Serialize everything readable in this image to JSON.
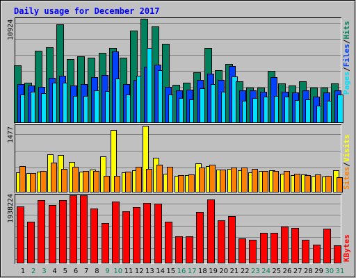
{
  "chart_data": {
    "type": "bar",
    "title": "Daily usage for December 2017",
    "categories": [
      "1",
      "2",
      "3",
      "4",
      "5",
      "6",
      "7",
      "8",
      "9",
      "10",
      "11",
      "12",
      "13",
      "14",
      "15",
      "16",
      "17",
      "18",
      "19",
      "20",
      "21",
      "22",
      "23",
      "24",
      "25",
      "26",
      "27",
      "28",
      "29",
      "30",
      "31"
    ],
    "weekend_days": [
      "2",
      "3",
      "9",
      "10",
      "16",
      "17",
      "23",
      "24",
      "30",
      "31"
    ],
    "colors": {
      "background": "#c0c0c0",
      "plot": "#c0c0c0",
      "grid": "#808080",
      "title": "#0000ff",
      "weekday": "#000000",
      "weekend": "#00805c",
      "hits": "#00805c",
      "files": "#0040ff",
      "pages": "#00e0ff",
      "visits": "#ffff00",
      "sites": "#ff8000",
      "kbytes": "#ff0000"
    },
    "panels": [
      {
        "max_label": "10924",
        "ylim": [
          0,
          10924
        ],
        "legend": [
          {
            "text": "Pages",
            "color": "#00e0ff"
          },
          {
            "text": "/",
            "color": "#000000"
          },
          {
            "text": "Files",
            "color": "#0040ff"
          },
          {
            "text": "/",
            "color": "#000000"
          },
          {
            "text": "Hits",
            "color": "#00805c"
          }
        ],
        "series": [
          {
            "name": "Hits",
            "color": "#00805c",
            "values": [
              6000,
              4150,
              7550,
              7950,
              10330,
              6700,
              7000,
              6850,
              7300,
              7850,
              6850,
              9650,
              10924,
              10100,
              8300,
              3950,
              4170,
              5300,
              7850,
              5500,
              6150,
              4350,
              3700,
              3700,
              5450,
              4100,
              3850,
              4350,
              3650,
              3700,
              4100
            ]
          },
          {
            "name": "Files",
            "color": "#0040ff",
            "values": [
              4000,
              3900,
              3750,
              4700,
              4930,
              3900,
              4050,
              4750,
              5000,
              7450,
              4000,
              4450,
              5900,
              6100,
              3750,
              3350,
              3450,
              4500,
              5150,
              4450,
              5950,
              3350,
              3350,
              3250,
              4750,
              3250,
              3150,
              3400,
              2700,
              3150,
              3400
            ]
          },
          {
            "name": "Pages",
            "color": "#00e0ff",
            "values": [
              2950,
              3250,
              3100,
              4200,
              4150,
              2800,
              2800,
              3350,
              3300,
              4650,
              2900,
              4900,
              7850,
              5500,
              2950,
              2600,
              2450,
              3600,
              4000,
              3200,
              4850,
              2300,
              2600,
              2700,
              2750,
              2700,
              2350,
              2450,
              1750,
              2300,
              2950
            ]
          }
        ]
      },
      {
        "max_label": "1477",
        "ylim": [
          0,
          1477
        ],
        "legend": [
          {
            "text": "Sites",
            "color": "#ff8000"
          },
          {
            "text": "/",
            "color": "#000000"
          },
          {
            "text": "Visits",
            "color": "#ffff00"
          }
        ],
        "series": [
          {
            "name": "Visits",
            "color": "#ffff00",
            "values": [
              430,
              420,
              450,
              840,
              820,
              670,
              450,
              500,
              800,
              1390,
              440,
              480,
              1477,
              760,
              400,
              360,
              370,
              630,
              570,
              500,
              510,
              480,
              430,
              470,
              480,
              400,
              380,
              390,
              350,
              340,
              480
            ]
          },
          {
            "name": "Sites",
            "color": "#ff8000",
            "values": [
              580,
              420,
              460,
              650,
              520,
              560,
              470,
              460,
              350,
              350,
              450,
              560,
              520,
              600,
              560,
              370,
              390,
              540,
              600,
              500,
              550,
              550,
              520,
              470,
              460,
              460,
              410,
              380,
              390,
              360,
              320
            ]
          }
        ]
      },
      {
        "max_label": "1938224",
        "ylim": [
          0,
          1938224
        ],
        "legend": [
          {
            "text": "KBytes",
            "color": "#ff0000"
          }
        ],
        "series": [
          {
            "name": "KBytes",
            "color": "#ff0000",
            "values": [
              1620000,
              1180000,
              1800000,
              1650000,
              1800000,
              1938224,
              1938224,
              1550000,
              1130000,
              1760000,
              1470000,
              1600000,
              1720000,
              1700000,
              1170000,
              760000,
              760000,
              1460000,
              1810000,
              1220000,
              1330000,
              700000,
              650000,
              850000,
              850000,
              1040000,
              1000000,
              650000,
              520000,
              980000,
              490000
            ]
          }
        ]
      }
    ]
  }
}
